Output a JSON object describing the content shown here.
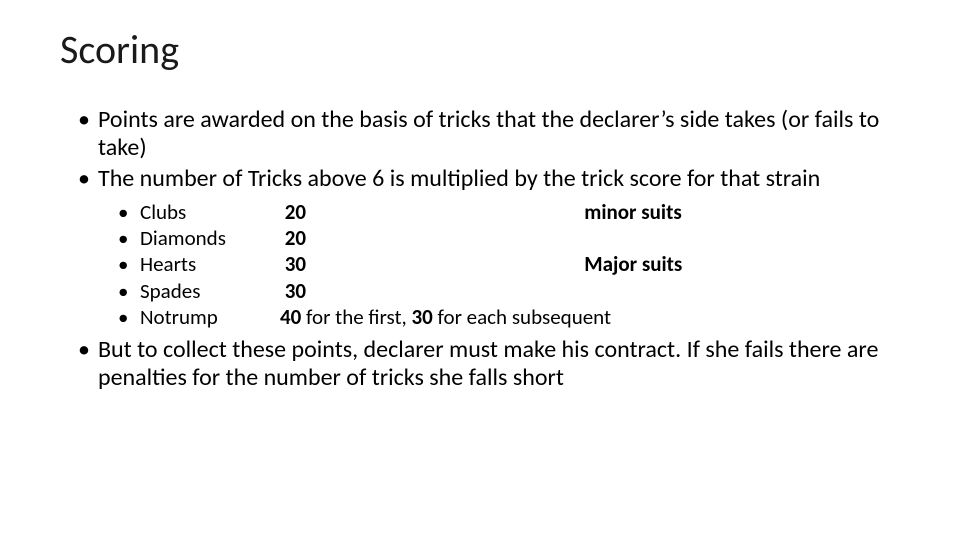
{
  "title": "Scoring",
  "colors": {
    "title_color": "#1a1a1a",
    "body_color": "#000000",
    "background": "#ffffff"
  },
  "typography": {
    "title_fontsize_pt": 40,
    "body_fontsize_pt": 24,
    "sub_fontsize_pt": 21,
    "font_family": "Calibri"
  },
  "bullets": {
    "b1": "Points are awarded on the basis of tricks that the declarer’s side takes (or fails to take)",
    "b2": "The number of Tricks above 6 is multiplied by the trick score for that strain",
    "b3": "But to collect these points, declarer must make his contract. If she fails there are penalties for the number of tricks she falls short"
  },
  "suits": {
    "clubs": {
      "name": "Clubs",
      "score": "20",
      "rest": "",
      "group": "minor suits"
    },
    "diamonds": {
      "name": "Diamonds",
      "score": "20",
      "rest": "",
      "group": ""
    },
    "hearts": {
      "name": "Hearts",
      "score": "30",
      "rest": "",
      "group": "Major suits"
    },
    "spades": {
      "name": "Spades",
      "score": "30",
      "rest": "",
      "group": ""
    },
    "notrump_name": "Notrump",
    "notrump_score1": "40",
    "notrump_mid": " for the first, ",
    "notrump_score2": "30",
    "notrump_tail": " for each subsequent"
  }
}
